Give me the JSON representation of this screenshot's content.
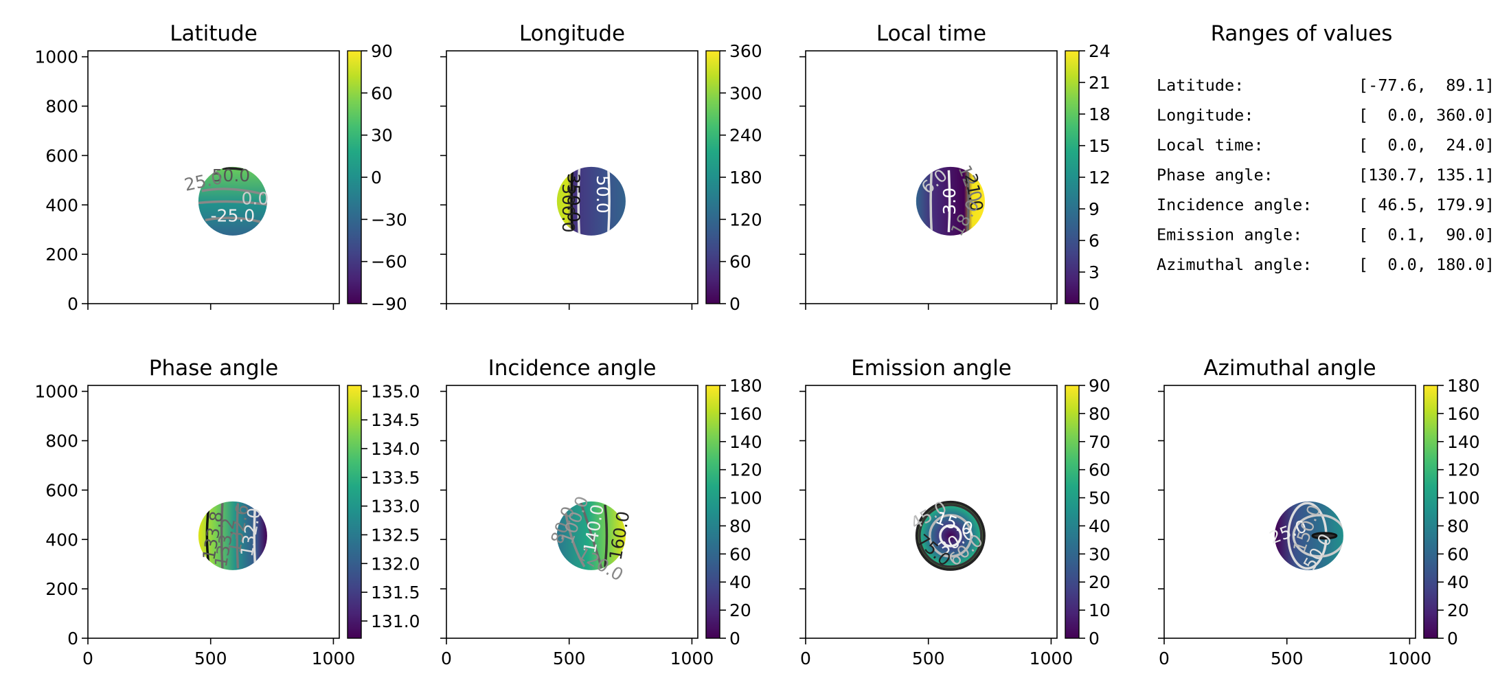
{
  "chart_data": [
    {
      "type": "heatmap",
      "title": "Latitude",
      "xlim": [
        0,
        1024
      ],
      "ylim": [
        0,
        1024
      ],
      "xticks": [
        0,
        500,
        1000
      ],
      "yticks": [
        0,
        200,
        400,
        600,
        800,
        1000
      ],
      "colorbar": {
        "min": -90,
        "max": 90,
        "ticks": [
          90,
          60,
          30,
          0,
          -30,
          -60,
          -90
        ]
      },
      "contour_labels": [
        "50.0",
        "25.0",
        "0.0",
        "-25.0"
      ]
    },
    {
      "type": "heatmap",
      "title": "Longitude",
      "xlim": [
        0,
        1024
      ],
      "ylim": [
        0,
        1024
      ],
      "xticks": [
        0,
        500,
        1000
      ],
      "yticks": [
        0,
        200,
        400,
        600,
        800,
        1000
      ],
      "colorbar": {
        "min": 0,
        "max": 360,
        "ticks": [
          360,
          300,
          240,
          180,
          120,
          60,
          0
        ]
      },
      "contour_labels": [
        "50.0",
        "350.0",
        "300.0"
      ]
    },
    {
      "type": "heatmap",
      "title": "Local time",
      "xlim": [
        0,
        1024
      ],
      "ylim": [
        0,
        1024
      ],
      "xticks": [
        0,
        500,
        1000
      ],
      "yticks": [
        0,
        200,
        400,
        600,
        800,
        1000
      ],
      "colorbar": {
        "min": 0,
        "max": 24,
        "ticks": [
          24,
          21,
          18,
          15,
          12,
          9,
          6,
          3,
          0
        ]
      },
      "contour_labels": [
        "6.0",
        "3.0",
        "12.0",
        "21.0",
        "18.0"
      ]
    },
    {
      "type": "heatmap",
      "title": "Phase angle",
      "xlim": [
        0,
        1024
      ],
      "ylim": [
        0,
        1024
      ],
      "xticks": [
        0,
        500,
        1000
      ],
      "yticks": [
        0,
        200,
        400,
        600,
        800,
        1000
      ],
      "colorbar": {
        "min": 130.7,
        "max": 135.1,
        "ticks": [
          135.0,
          134.5,
          134.0,
          133.5,
          133.0,
          132.5,
          132.0,
          131.5,
          131.0
        ]
      },
      "contour_labels": [
        "133.8",
        "132.6",
        "132.0",
        "133.2"
      ]
    },
    {
      "type": "heatmap",
      "title": "Incidence angle",
      "xlim": [
        0,
        1024
      ],
      "ylim": [
        0,
        1024
      ],
      "xticks": [
        0,
        500,
        1000
      ],
      "yticks": [
        0,
        200,
        400,
        600,
        800,
        1000
      ],
      "colorbar": {
        "min": 0,
        "max": 180,
        "ticks": [
          180,
          160,
          140,
          120,
          100,
          80,
          60,
          40,
          20,
          0
        ]
      },
      "contour_labels": [
        "80.0",
        "100.0",
        "140.0",
        "160.0",
        "120.0"
      ]
    },
    {
      "type": "heatmap",
      "title": "Emission angle",
      "xlim": [
        0,
        1024
      ],
      "ylim": [
        0,
        1024
      ],
      "xticks": [
        0,
        500,
        1000
      ],
      "yticks": [
        0,
        200,
        400,
        600,
        800,
        1000
      ],
      "colorbar": {
        "min": 0,
        "max": 90,
        "ticks": [
          90,
          80,
          70,
          60,
          50,
          40,
          30,
          20,
          10,
          0
        ]
      },
      "contour_labels": [
        "45.0",
        "15.0",
        "30.0",
        "75.0",
        "60.0"
      ]
    },
    {
      "type": "heatmap",
      "title": "Azimuthal angle",
      "xlim": [
        0,
        1024
      ],
      "ylim": [
        0,
        1024
      ],
      "xticks": [
        0,
        500,
        1000
      ],
      "yticks": [
        0,
        200,
        400,
        600,
        800,
        1000
      ],
      "colorbar": {
        "min": 0,
        "max": 180,
        "ticks": [
          180,
          160,
          140,
          120,
          100,
          80,
          60,
          40,
          20,
          0
        ]
      },
      "contour_labels": [
        "25.0",
        "150.0",
        "50.0"
      ]
    },
    {
      "type": "table",
      "title": "Ranges of values",
      "rows": [
        {
          "label": "Latitude:",
          "range": "[-77.6,  89.1]"
        },
        {
          "label": "Longitude:",
          "range": "[  0.0, 360.0]"
        },
        {
          "label": "Local time:",
          "range": "[  0.0,  24.0]"
        },
        {
          "label": "Phase angle:",
          "range": "[130.7, 135.1]"
        },
        {
          "label": "Incidence angle:",
          "range": "[ 46.5, 179.9]"
        },
        {
          "label": "Emission angle:",
          "range": "[  0.1,  90.0]"
        },
        {
          "label": "Azimuthal angle:",
          "range": "[  0.0, 180.0]"
        }
      ]
    }
  ]
}
